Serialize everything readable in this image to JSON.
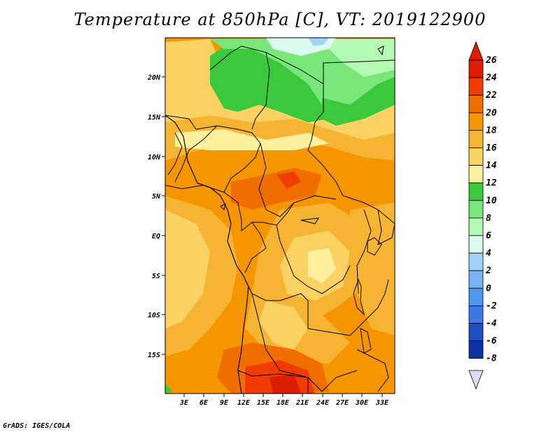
{
  "title": "Temperature at 850hPa [C], VT: 2019122900",
  "credit": "GrADS: IGES/COLA",
  "map": {
    "lat_labels": [
      "20N",
      "15N",
      "10N",
      "5N",
      "EQ",
      "5S",
      "10S",
      "15S"
    ],
    "lon_labels": [
      "3E",
      "6E",
      "9E",
      "12E",
      "15E",
      "18E",
      "21E",
      "24E",
      "27E",
      "30E",
      "33E"
    ]
  },
  "colorbar": {
    "labels": [
      "26",
      "24",
      "22",
      "20",
      "18",
      "16",
      "14",
      "12",
      "10",
      "8",
      "6",
      "4",
      "2",
      "0",
      "-2",
      "-4",
      "-6",
      "-8"
    ],
    "colors": [
      "#dc1e00",
      "#f03c00",
      "#f06e00",
      "#f59600",
      "#f5b432",
      "#fad264",
      "#fff0a0",
      "#3cc83c",
      "#78e678",
      "#b4fab4",
      "#dcfaf0",
      "#a0d2fa",
      "#78b4f5",
      "#5096f0",
      "#3c78e6",
      "#1e50c8",
      "#0a32a0",
      "#000a64"
    ],
    "cap_top_color": "#dc1e00",
    "cap_bottom_color": "#dcdcf0"
  }
}
